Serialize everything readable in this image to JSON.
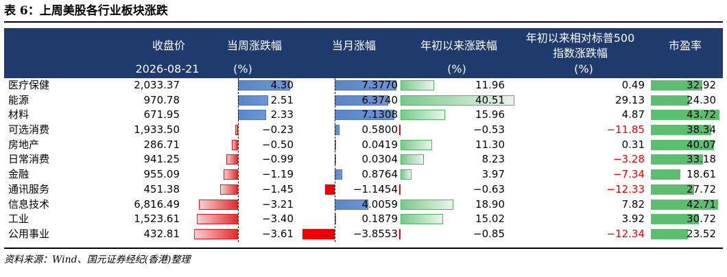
{
  "title": "表 6：上周美股各行业板块涨跌",
  "headers": {
    "close": "收盘价",
    "date": "2026-08-21",
    "week": "当周涨跌幅",
    "week_unit": "(%)",
    "month": "当月涨幅",
    "ytd": "年初以来涨跌幅",
    "ytd_unit": "(%)",
    "rel_line1": "年初以来相对标普500",
    "rel_line2": "指数涨跌幅",
    "rel_unit": "(%)",
    "pe": "市盈率"
  },
  "rows": [
    {
      "name": "医疗保健",
      "close": "2,033.37",
      "week": "4.30",
      "month": "7.3770",
      "ytd": "11.96",
      "rel": "0.49",
      "pe": "32.92"
    },
    {
      "name": "能源",
      "close": "970.78",
      "week": "2.51",
      "month": "6.3740",
      "ytd": "40.51",
      "rel": "29.13",
      "pe": "24.30"
    },
    {
      "name": "材料",
      "close": "671.95",
      "week": "2.33",
      "month": "7.1308",
      "ytd": "15.96",
      "rel": "4.87",
      "pe": "43.72"
    },
    {
      "name": "可选消费",
      "close": "1,933.50",
      "week": "−0.23",
      "month": "0.5800",
      "ytd": "−0.53",
      "rel": "−11.85",
      "pe": "38.34"
    },
    {
      "name": "房地产",
      "close": "286.71",
      "week": "−0.50",
      "month": "0.0419",
      "ytd": "11.30",
      "rel": "0.31",
      "pe": "40.07"
    },
    {
      "name": "日常消费",
      "close": "941.25",
      "week": "−0.99",
      "month": "0.0304",
      "ytd": "8.23",
      "rel": "−3.28",
      "pe": "33.18"
    },
    {
      "name": "金融",
      "close": "955.09",
      "week": "−1.19",
      "month": "0.8764",
      "ytd": "3.97",
      "rel": "−7.34",
      "pe": "18.61"
    },
    {
      "name": "通讯服务",
      "close": "451.38",
      "week": "−1.45",
      "month": "−1.1454",
      "ytd": "−0.63",
      "rel": "−12.33",
      "pe": "27.72"
    },
    {
      "name": "信息技术",
      "close": "6,816.49",
      "week": "−3.21",
      "month": "4.0059",
      "ytd": "18.90",
      "rel": "7.82",
      "pe": "42.71"
    },
    {
      "name": "工业",
      "close": "1,523.61",
      "week": "−3.40",
      "month": "0.1879",
      "ytd": "15.02",
      "rel": "3.92",
      "pe": "30.72"
    },
    {
      "name": "公用事业",
      "close": "432.81",
      "week": "−3.61",
      "month": "−3.8553",
      "ytd": "−0.85",
      "rel": "−12.34",
      "pe": "23.52"
    }
  ],
  "source": "资料来源：Wind、国元证券经纪(香港)整理"
}
